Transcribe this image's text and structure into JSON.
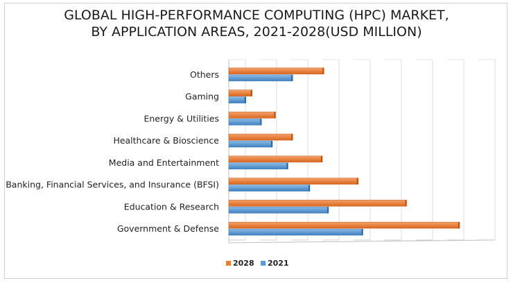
{
  "chart_data": {
    "type": "bar",
    "orientation": "horizontal",
    "title": [
      "GLOBAL HIGH-PERFORMANCE COMPUTING (HPC) MARKET,",
      "BY APPLICATION AREAS, 2021-2028(USD MILLION)"
    ],
    "categories": [
      "Government & Defense",
      "Education & Research",
      "Banking, Financial Services, and Insurance (BFSI)",
      "Media and Entertainment",
      "Healthcare & Bioscience",
      "Energy & Utilities",
      "Gaming",
      "Others"
    ],
    "series": [
      {
        "name": "2028",
        "color": "#ED7D31",
        "values": [
          74,
          57,
          41.5,
          30,
          20.5,
          15,
          7.5,
          30.5
        ]
      },
      {
        "name": "2021",
        "color": "#5B9BD5",
        "values": [
          43,
          32,
          26,
          19,
          14,
          10.5,
          5.5,
          20.5
        ]
      }
    ],
    "xlim": [
      0,
      80
    ],
    "xlabel": "",
    "ylabel": "",
    "grid": true,
    "legend": {
      "position": "bottom",
      "entries": [
        "2028",
        "2021"
      ]
    }
  }
}
